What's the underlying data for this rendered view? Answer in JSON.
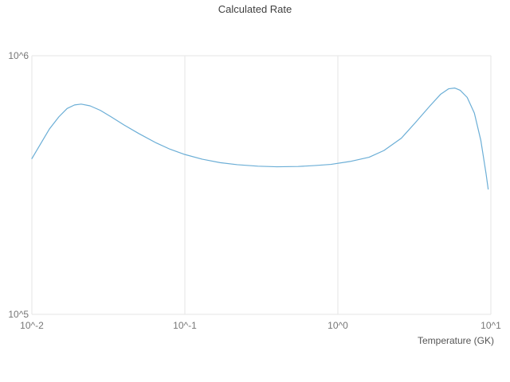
{
  "title": "Calculated Rate",
  "xlabel": "Temperature (GK)",
  "colors": {
    "line": "#6baed6",
    "grid": "#e6e6e6"
  },
  "chart_data": {
    "type": "line",
    "title": "Calculated Rate",
    "xlabel": "Temperature (GK)",
    "ylabel": "",
    "x_scale": "log",
    "y_scale": "log",
    "xlim": [
      0.01,
      10
    ],
    "ylim": [
      100000,
      1000000
    ],
    "x_tick_values": [
      0.01,
      0.1,
      1,
      10
    ],
    "x_tick_labels": [
      "10^-2",
      "10^-1",
      "10^0",
      "10^1"
    ],
    "y_tick_values": [
      100000,
      1000000
    ],
    "y_tick_labels": [
      "10^5",
      "10^6"
    ],
    "grid": true,
    "legend_position": "none",
    "series": [
      {
        "name": "Calculated Rate",
        "x": [
          0.01,
          0.0115,
          0.013,
          0.015,
          0.017,
          0.019,
          0.021,
          0.024,
          0.028,
          0.033,
          0.04,
          0.05,
          0.065,
          0.08,
          0.1,
          0.13,
          0.17,
          0.22,
          0.3,
          0.4,
          0.55,
          0.7,
          0.9,
          1.2,
          1.6,
          2.0,
          2.6,
          3.2,
          4.0,
          4.7,
          5.3,
          5.8,
          6.3,
          7.0,
          7.8,
          8.6,
          9.3,
          9.6
        ],
        "y": [
          400000,
          460000,
          520000,
          580000,
          625000,
          645000,
          650000,
          640000,
          615000,
          580000,
          540000,
          500000,
          460000,
          435000,
          415000,
          398000,
          386000,
          379000,
          374000,
          372000,
          373000,
          376000,
          380000,
          390000,
          405000,
          430000,
          480000,
          550000,
          640000,
          710000,
          745000,
          750000,
          735000,
          690000,
          600000,
          470000,
          350000,
          305000
        ]
      }
    ]
  }
}
